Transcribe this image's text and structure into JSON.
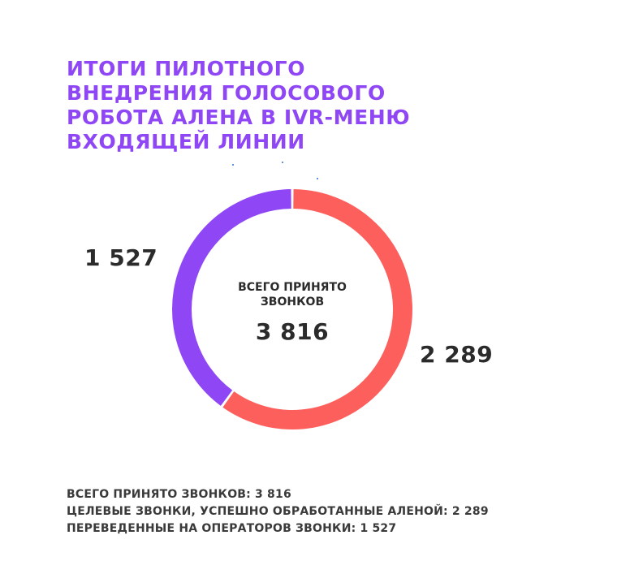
{
  "title_lines": [
    "ИТОГИ ПИЛОТНОГО",
    "ВНЕДРЕНИЯ ГОЛОСОВОГО",
    "РОБОТА АЛЕНА В IVR-МЕНЮ",
    "ВХОДЯЩЕЙ ЛИНИИ"
  ],
  "colors": {
    "title": "#8f46f5",
    "purple_segment": "#8f46f5",
    "red_segment": "#fd5f5c",
    "text": "#2b2b2b"
  },
  "chart_data": {
    "type": "pie",
    "donut": true,
    "slices": [
      {
        "label": "Целевые звонки, успешно обработанные Аленой",
        "value": 2289,
        "color": "#fd5f5c",
        "display_value": "2 289"
      },
      {
        "label": "Переведенные на операторов звонки",
        "value": 1527,
        "color": "#8f46f5",
        "display_value": "1 527"
      }
    ],
    "center_caption_lines": [
      "ВСЕГО ПРИНЯТО",
      "ЗВОНКОВ"
    ],
    "center_total": "3 816",
    "total": 3816
  },
  "summary_lines": [
    "ВСЕГО ПРИНЯТО ЗВОНКОВ: 3 816",
    "ЦЕЛЕВЫЕ ЗВОНКИ, УСПЕШНО ОБРАБОТАННЫЕ АЛЕНОЙ: 2 289",
    "ПЕРЕВЕДЕННЫЕ НА ОПЕРАТОРОВ ЗВОНКИ: 1 527"
  ]
}
